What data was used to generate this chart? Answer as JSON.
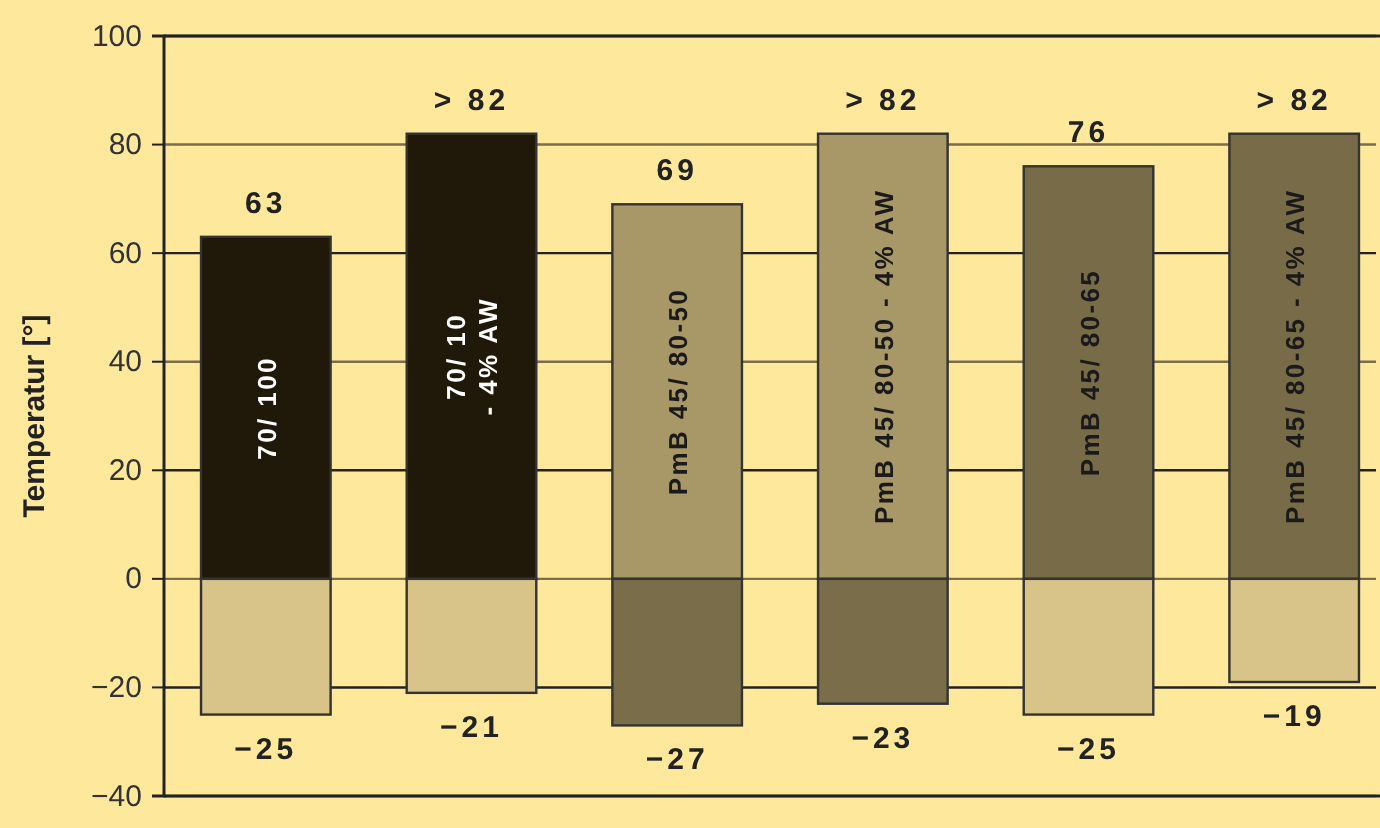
{
  "chart_data": {
    "type": "bar",
    "ylabel": "Temperatur [°]",
    "stacked": true,
    "categories": [
      "70/ 100",
      "70/ 10\n- 4% AW",
      "PmB 45/ 80-50",
      "PmB 45/ 80-50  - 4% AW",
      "PmB 45/ 80-65",
      "PmB 45/ 80-65  - 4% AW"
    ],
    "series": [
      {
        "colors": [
          "#201808",
          "#201808",
          "#a89868",
          "#a89868",
          "#786c48",
          "#786c48"
        ],
        "values": [
          63,
          82,
          69,
          82,
          76,
          82
        ],
        "value_labels": [
          "63",
          "> 82",
          "69",
          "> 82",
          "76",
          "> 82"
        ]
      },
      {
        "colors": [
          "#d8c488",
          "#d8c488",
          "#7a6e4a",
          "#7a6e4a",
          "#d8c488",
          "#d8c488"
        ],
        "values": [
          -25,
          -21,
          -27,
          -23,
          -25,
          -19
        ],
        "value_labels": [
          "−25",
          "−21",
          "−27",
          "−23",
          "−25",
          "−19"
        ]
      }
    ],
    "ylim": [
      -40,
      100
    ],
    "yticks": [
      {
        "value": -40,
        "label": "−40"
      },
      {
        "value": -20,
        "label": "−20"
      },
      0,
      20,
      40,
      60,
      80,
      100
    ],
    "grid": "y"
  }
}
